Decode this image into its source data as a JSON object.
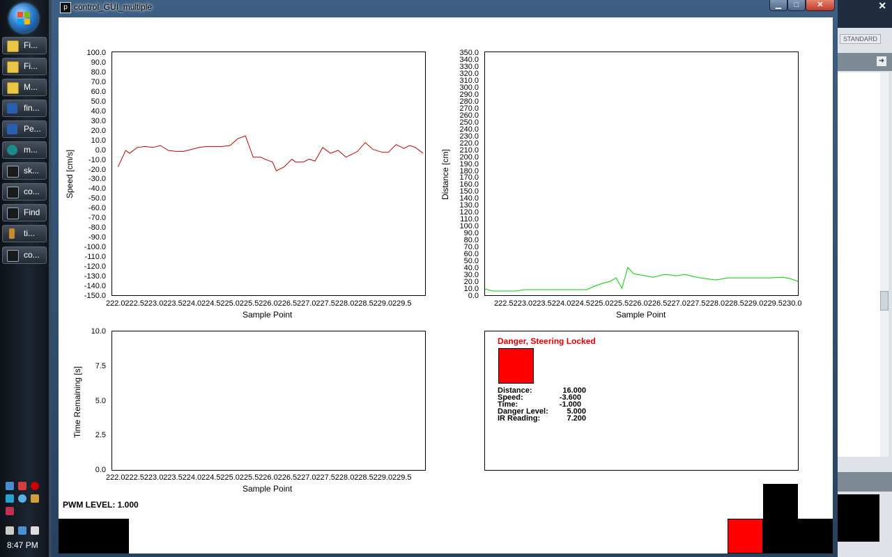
{
  "taskbar": {
    "buttons": [
      {
        "label": "Fi...",
        "icon": "folder-icon"
      },
      {
        "label": "Fi...",
        "icon": "folder-icon"
      },
      {
        "label": "M...",
        "icon": "folder-icon"
      },
      {
        "label": "fin...",
        "icon": "word-icon"
      },
      {
        "label": "Pe...",
        "icon": "word-icon"
      },
      {
        "label": "m...",
        "icon": "arduino-icon"
      },
      {
        "label": "sk...",
        "icon": "processing-icon"
      },
      {
        "label": "co...",
        "icon": "processing-icon"
      },
      {
        "label": "Find",
        "icon": "processing-icon"
      },
      {
        "label": "ti...",
        "icon": "tool-icon"
      },
      {
        "label": "co...",
        "icon": "processing-icon"
      }
    ],
    "clock": "8:47 PM"
  },
  "background_app": {
    "mode_label": "STANDARD",
    "close_label": "✕"
  },
  "window": {
    "title": "control_GUI_multiple",
    "icon_glyph": "p",
    "min_glyph": "▁",
    "max_glyph": "□",
    "close_glyph": "✕"
  },
  "charts": {
    "speed": {
      "ylabel": "Speed [cm/s]",
      "xlabel": "Sample Point",
      "yticks": [
        "100.0",
        "90.0",
        "80.0",
        "70.0",
        "60.0",
        "50.0",
        "40.0",
        "30.0",
        "20.0",
        "10.0",
        "0.0",
        "-10.0",
        "-20.0",
        "-30.0",
        "-40.0",
        "-50.0",
        "-60.0",
        "-70.0",
        "-80.0",
        "-90.0",
        "-100.0",
        "-110.0",
        "-120.0",
        "-130.0",
        "-140.0",
        "-150.0"
      ],
      "xticks": [
        "222.0",
        "222.5",
        "223.0",
        "223.5",
        "224.0",
        "224.5",
        "225.0",
        "225.5",
        "226.0",
        "226.5",
        "227.0",
        "227.5",
        "228.0",
        "228.5",
        "229.0",
        "229.5"
      ]
    },
    "distance": {
      "ylabel": "Distance [cm]",
      "xlabel": "Sample Point",
      "yticks": [
        "350.0",
        "340.0",
        "330.0",
        "320.0",
        "310.0",
        "300.0",
        "290.0",
        "280.0",
        "270.0",
        "260.0",
        "250.0",
        "240.0",
        "230.0",
        "220.0",
        "210.0",
        "200.0",
        "190.0",
        "180.0",
        "170.0",
        "160.0",
        "150.0",
        "140.0",
        "130.0",
        "120.0",
        "110.0",
        "100.0",
        "90.0",
        "80.0",
        "70.0",
        "60.0",
        "50.0",
        "40.0",
        "30.0",
        "20.0",
        "10.0",
        "0.0"
      ],
      "xticks": [
        "222.5",
        "223.0",
        "223.5",
        "224.0",
        "224.5",
        "225.0",
        "225.5",
        "226.0",
        "226.5",
        "227.0",
        "227.5",
        "228.0",
        "228.5",
        "229.0",
        "229.5",
        "230.0"
      ]
    },
    "time": {
      "ylabel": "Time Remaining [s]",
      "xlabel": "Sample Point",
      "yticks": [
        "10.0",
        "7.5",
        "5.0",
        "2.5",
        "0.0"
      ],
      "xticks": [
        "222.0",
        "222.5",
        "223.0",
        "223.5",
        "224.0",
        "224.5",
        "225.0",
        "225.5",
        "226.0",
        "226.5",
        "227.0",
        "227.5",
        "228.0",
        "228.5",
        "229.0",
        "229.5"
      ]
    }
  },
  "chart_data": [
    {
      "type": "line",
      "xlabel": "Sample Point",
      "ylabel": "Speed [cm/s]",
      "ylim": [
        -150,
        100
      ],
      "xlim": [
        221.85,
        229.95
      ],
      "series": [
        {
          "color": "#c00000",
          "x": [
            222.0,
            222.2,
            222.3,
            222.5,
            222.7,
            222.9,
            223.1,
            223.3,
            223.5,
            223.7,
            223.9,
            224.1,
            224.3,
            224.5,
            224.7,
            224.9,
            225.1,
            225.3,
            225.5,
            225.7,
            225.8,
            226.0,
            226.1,
            226.3,
            226.5,
            226.6,
            226.8,
            226.95,
            227.1,
            227.3,
            227.5,
            227.7,
            227.9,
            228.2,
            228.4,
            228.6,
            228.85,
            229.0,
            229.2,
            229.4,
            229.55,
            229.7,
            229.9
          ],
          "y": [
            -18,
            -1,
            -4,
            2,
            3,
            2,
            4,
            -1,
            -2,
            -2,
            0,
            2,
            3,
            3,
            3,
            4,
            11,
            14,
            -8,
            -8,
            -10,
            -13,
            -22,
            -18,
            -10,
            -13,
            -13,
            -10,
            -12,
            2,
            -4,
            -1,
            -8,
            -2,
            7,
            0,
            -3,
            -3,
            5,
            1,
            4,
            2,
            -4
          ]
        }
      ],
      "yticks_shown": [
        100,
        90,
        80,
        70,
        60,
        50,
        40,
        30,
        20,
        10,
        0,
        -10,
        -20,
        -30,
        -40,
        -50,
        -60,
        -70,
        -80,
        -90,
        -100,
        -110,
        -120,
        -130,
        -140,
        -150
      ]
    },
    {
      "type": "line",
      "xlabel": "Sample Point",
      "ylabel": "Distance [cm]",
      "ylim": [
        0,
        350
      ],
      "xlim": [
        222.0,
        230.0
      ],
      "series": [
        {
          "color": "#00cc00",
          "x": [
            222.0,
            222.2,
            222.5,
            222.8,
            223.0,
            223.5,
            224.0,
            224.5,
            224.6,
            224.8,
            225.0,
            225.2,
            225.35,
            225.5,
            225.65,
            225.8,
            226.0,
            226.3,
            226.6,
            226.9,
            227.1,
            227.5,
            227.9,
            228.2,
            228.5,
            228.9,
            229.3,
            229.6,
            229.8,
            230.0
          ],
          "y": [
            9,
            6,
            6,
            6,
            8,
            8,
            8,
            8,
            8,
            13,
            17,
            20,
            25,
            10,
            40,
            31,
            29,
            26,
            30,
            28,
            30,
            25,
            22,
            25,
            25,
            25,
            25,
            26,
            24,
            20
          ]
        }
      ]
    },
    {
      "type": "line",
      "xlabel": "Sample Point",
      "ylabel": "Time Remaining [s]",
      "ylim": [
        0,
        10
      ],
      "series": []
    }
  ],
  "status": {
    "title": "Danger, Steering Locked",
    "indicator_color": "#ff0000",
    "rows": [
      {
        "label": "Distance:",
        "value": "16.000"
      },
      {
        "label": "Speed:",
        "value": "-3.600"
      },
      {
        "label": "Time:",
        "value": "-1.000"
      },
      {
        "label": "Danger Level:",
        "value": "5.000"
      },
      {
        "label": "IR Reading:",
        "value": "7.200"
      }
    ]
  },
  "pwm": {
    "label": "PWM LEVEL:  1.000"
  },
  "colors": {
    "speed_line": "#c00000",
    "distance_line": "#00cc00",
    "danger": "#ff0000"
  }
}
